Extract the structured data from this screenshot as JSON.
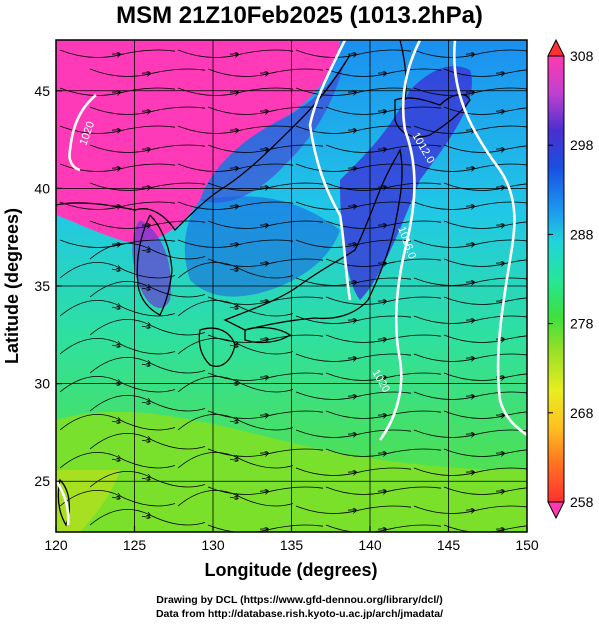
{
  "title": "MSM 21Z10Feb2025 (1013.2hPa)",
  "chart_data": {
    "type": "heatmap",
    "title": "MSM 21Z10Feb2025 (1013.2hPa)",
    "xlabel": "Longitude (degrees)",
    "ylabel": "Latitude  (degrees)",
    "xlim": [
      120,
      150
    ],
    "ylim": [
      22.4,
      47.6
    ],
    "x_ticks": [
      "120",
      "125",
      "130",
      "135",
      "140",
      "145",
      "150"
    ],
    "y_ticks": [
      "25",
      "30",
      "35",
      "40",
      "45"
    ],
    "grid": true,
    "colorbar": {
      "min": 258,
      "max": 308,
      "tick_labels": [
        "308",
        "298",
        "288",
        "278",
        "268",
        "258"
      ],
      "colors": [
        "#ff3ab0",
        "#c040d0",
        "#4a2fd0",
        "#1a4fe0",
        "#1b8ff0",
        "#21d4dc",
        "#25e69a",
        "#3ce040",
        "#9fe025",
        "#e8ee20",
        "#ffc020",
        "#ff7020",
        "#ff3030"
      ]
    },
    "contour_labels": [
      "1020",
      "1012.0",
      "1016.0",
      "1020"
    ]
  },
  "credits": {
    "line1": "Drawing by DCL (https://www.gfd-dennou.org/library/dcl/)",
    "line2": "Data from http://database.rish.kyoto-u.ac.jp/arch/jmadata/"
  }
}
